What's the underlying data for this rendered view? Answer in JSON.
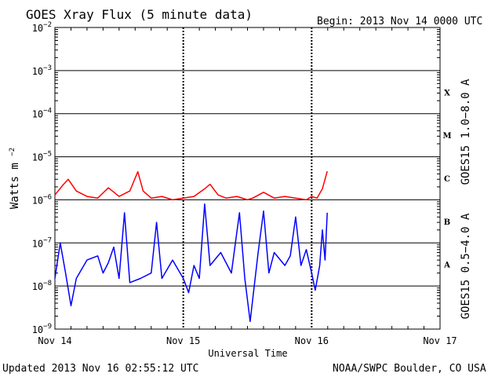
{
  "header": {
    "title": "GOES Xray Flux (5 minute data)",
    "begin": "Begin:  2013 Nov 14 0000 UTC"
  },
  "footer": {
    "updated": "Updated 2013 Nov 16 02:55:12 UTC",
    "credit": "NOAA/SWPC Boulder, CO USA"
  },
  "colors": {
    "long_channel": "#ff0000",
    "short_channel": "#0000ff",
    "axes": "#000000"
  },
  "chart_data": {
    "type": "line",
    "title": "GOES Xray Flux (5 minute data)",
    "xlabel": "Universal Time",
    "ylabel": "Watts m⁻²",
    "yscale": "log",
    "ylim": [
      1e-09,
      0.01
    ],
    "xlim": [
      "2013-11-14",
      "2013-11-17"
    ],
    "x_ticks": [
      "Nov 14",
      "Nov 15",
      "Nov 16",
      "Nov 17"
    ],
    "y_ticks": [
      {
        "base": "10",
        "exp": "-2"
      },
      {
        "base": "10",
        "exp": "-3"
      },
      {
        "base": "10",
        "exp": "-4"
      },
      {
        "base": "10",
        "exp": "-5"
      },
      {
        "base": "10",
        "exp": "-6"
      },
      {
        "base": "10",
        "exp": "-7"
      },
      {
        "base": "10",
        "exp": "-8"
      },
      {
        "base": "10",
        "exp": "-9"
      }
    ],
    "grid": "horizontal at each decade",
    "flare_classes": [
      {
        "label": "X",
        "min": 0.0001
      },
      {
        "label": "M",
        "min": 1e-05
      },
      {
        "label": "C",
        "min": 1e-06
      },
      {
        "label": "B",
        "min": 1e-07
      },
      {
        "label": "A",
        "min": 1e-08
      }
    ],
    "series": [
      {
        "name": "GOES15 1.0−8.0 A",
        "color": "#ff0000",
        "points": [
          [
            "2013-11-14 00:00",
            1.3e-06
          ],
          [
            "2013-11-14 01:30",
            2.2e-06
          ],
          [
            "2013-11-14 02:30",
            3e-06
          ],
          [
            "2013-11-14 04:00",
            1.6e-06
          ],
          [
            "2013-11-14 06:00",
            1.2e-06
          ],
          [
            "2013-11-14 08:00",
            1.1e-06
          ],
          [
            "2013-11-14 10:00",
            1.9e-06
          ],
          [
            "2013-11-14 12:00",
            1.2e-06
          ],
          [
            "2013-11-14 14:00",
            1.6e-06
          ],
          [
            "2013-11-14 15:30",
            4.5e-06
          ],
          [
            "2013-11-14 16:30",
            1.6e-06
          ],
          [
            "2013-11-14 18:00",
            1.1e-06
          ],
          [
            "2013-11-14 20:00",
            1.2e-06
          ],
          [
            "2013-11-14 22:00",
            1e-06
          ],
          [
            "2013-11-15 00:00",
            1.1e-06
          ],
          [
            "2013-11-15 02:00",
            1.2e-06
          ],
          [
            "2013-11-15 04:00",
            1.8e-06
          ],
          [
            "2013-11-15 05:00",
            2.3e-06
          ],
          [
            "2013-11-15 06:30",
            1.3e-06
          ],
          [
            "2013-11-15 08:00",
            1.1e-06
          ],
          [
            "2013-11-15 10:00",
            1.2e-06
          ],
          [
            "2013-11-15 12:00",
            1e-06
          ],
          [
            "2013-11-15 13:00",
            1.1e-06
          ],
          [
            "2013-11-15 15:00",
            1.5e-06
          ],
          [
            "2013-11-15 17:00",
            1.1e-06
          ],
          [
            "2013-11-15 19:00",
            1.2e-06
          ],
          [
            "2013-11-15 21:00",
            1.1e-06
          ],
          [
            "2013-11-15 23:00",
            1e-06
          ],
          [
            "2013-11-16 00:00",
            1.2e-06
          ],
          [
            "2013-11-16 01:00",
            1.1e-06
          ],
          [
            "2013-11-16 02:00",
            1.8e-06
          ],
          [
            "2013-11-16 02:55",
            4.6e-06
          ]
        ]
      },
      {
        "name": "GOES15 0.5−4.0 A",
        "color": "#0000ff",
        "points": [
          [
            "2013-11-14 00:00",
            1.5e-08
          ],
          [
            "2013-11-14 01:00",
            1e-07
          ],
          [
            "2013-11-14 02:00",
            2e-08
          ],
          [
            "2013-11-14 03:00",
            3.5e-09
          ],
          [
            "2013-11-14 04:00",
            1.5e-08
          ],
          [
            "2013-11-14 06:00",
            4e-08
          ],
          [
            "2013-11-14 08:00",
            5e-08
          ],
          [
            "2013-11-14 09:00",
            2e-08
          ],
          [
            "2013-11-14 10:00",
            3.5e-08
          ],
          [
            "2013-11-14 11:00",
            8e-08
          ],
          [
            "2013-11-14 12:00",
            1.5e-08
          ],
          [
            "2013-11-14 13:00",
            5e-07
          ],
          [
            "2013-11-14 14:00",
            1.2e-08
          ],
          [
            "2013-11-14 16:00",
            1.5e-08
          ],
          [
            "2013-11-14 18:00",
            2e-08
          ],
          [
            "2013-11-14 19:00",
            3e-07
          ],
          [
            "2013-11-14 20:00",
            1.5e-08
          ],
          [
            "2013-11-14 22:00",
            4e-08
          ],
          [
            "2013-11-15 00:00",
            1.5e-08
          ],
          [
            "2013-11-15 01:00",
            7e-09
          ],
          [
            "2013-11-15 02:00",
            3e-08
          ],
          [
            "2013-11-15 03:00",
            1.5e-08
          ],
          [
            "2013-11-15 04:00",
            8e-07
          ],
          [
            "2013-11-15 05:00",
            3e-08
          ],
          [
            "2013-11-15 07:00",
            6e-08
          ],
          [
            "2013-11-15 09:00",
            2e-08
          ],
          [
            "2013-11-15 10:30",
            5e-07
          ],
          [
            "2013-11-15 11:30",
            1.5e-08
          ],
          [
            "2013-11-15 12:30",
            1.5e-09
          ],
          [
            "2013-11-15 14:00",
            6e-08
          ],
          [
            "2013-11-15 15:00",
            5.5e-07
          ],
          [
            "2013-11-15 16:00",
            2e-08
          ],
          [
            "2013-11-15 17:00",
            6e-08
          ],
          [
            "2013-11-15 19:00",
            3e-08
          ],
          [
            "2013-11-15 20:00",
            5e-08
          ],
          [
            "2013-11-15 21:00",
            4e-07
          ],
          [
            "2013-11-15 22:00",
            3e-08
          ],
          [
            "2013-11-15 23:00",
            7e-08
          ],
          [
            "2013-11-16 00:00",
            2e-08
          ],
          [
            "2013-11-16 00:40",
            8e-09
          ],
          [
            "2013-11-16 01:30",
            3e-08
          ],
          [
            "2013-11-16 02:00",
            2e-07
          ],
          [
            "2013-11-16 02:30",
            4e-08
          ],
          [
            "2013-11-16 02:55",
            5e-07
          ]
        ]
      }
    ]
  }
}
